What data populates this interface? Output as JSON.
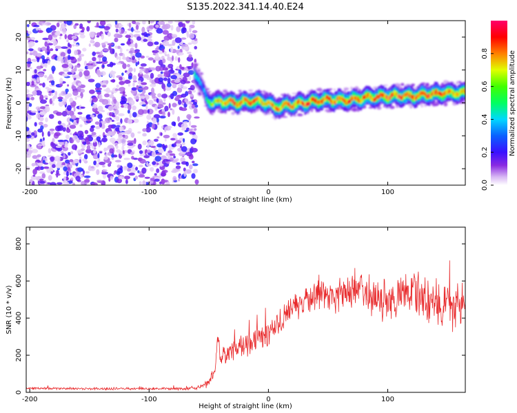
{
  "title": "S135.2022.341.14.40.E24",
  "chart_data": [
    {
      "type": "heatmap",
      "title": "S135.2022.341.14.40.E24",
      "xlabel": "Height of straight line (km)",
      "ylabel": "Frequency (Hz)",
      "xlim": [
        -203,
        165
      ],
      "ylim": [
        -25,
        25
      ],
      "xticks": [
        -200,
        -100,
        0,
        100
      ],
      "yticks": [
        -20,
        -10,
        0,
        10,
        20
      ],
      "colorbar": {
        "label": "Normalized spectral amplitude",
        "range": [
          0,
          1
        ],
        "ticks": [
          0.0,
          0.2,
          0.4,
          0.6,
          0.8
        ],
        "colormap": "rainbow (white-lilac, purple, blue, cyan, green, yellow, orange, red, magenta)"
      },
      "noise_region": {
        "x_range": [
          -203,
          -60
        ],
        "amplitude": "low (0.05-0.25)"
      },
      "ridge": {
        "x": [
          -62,
          -58,
          -55,
          -52,
          -48,
          -40,
          -30,
          -20,
          -10,
          0,
          5,
          10,
          20,
          30,
          40,
          50,
          60,
          70,
          80,
          90,
          100,
          110,
          120,
          130,
          140,
          150,
          165
        ],
        "frequency_hz": [
          9,
          7,
          4,
          1,
          0,
          0.5,
          0,
          0.3,
          0.5,
          0,
          -1.5,
          -1,
          -0.5,
          0,
          0.5,
          1,
          0.8,
          1,
          1.5,
          1.8,
          2,
          2.2,
          2,
          2.5,
          2.8,
          3,
          3
        ],
        "peak_amplitude": [
          0.5,
          0.4,
          0.35,
          0.5,
          0.7,
          0.8,
          0.9,
          0.85,
          0.9,
          0.8,
          0.85,
          0.9,
          0.85,
          0.9,
          0.95,
          0.9,
          0.95,
          0.9,
          0.95,
          0.9,
          0.95,
          0.9,
          0.95,
          0.9,
          0.95,
          0.9,
          0.85
        ]
      }
    },
    {
      "type": "line",
      "xlabel": "Height of straight line (km)",
      "ylabel": "SNR (10 * v/v)",
      "xlim": [
        -203,
        165
      ],
      "ylim": [
        0,
        890
      ],
      "xticks": [
        -200,
        -100,
        0,
        100
      ],
      "yticks": [
        0,
        200,
        400,
        600,
        800
      ],
      "color": "#e8292b",
      "series": [
        {
          "x": [
            -203,
            -150,
            -100,
            -70,
            -60,
            -50,
            -45,
            -42,
            -40,
            -38,
            -30,
            -20,
            -10,
            0,
            10,
            20,
            30,
            40,
            50,
            60,
            70,
            80,
            90,
            100,
            110,
            120,
            130,
            140,
            150,
            160,
            165
          ],
          "values": [
            22,
            20,
            20,
            20,
            25,
            50,
            120,
            300,
            160,
            200,
            220,
            250,
            290,
            320,
            380,
            460,
            500,
            520,
            540,
            520,
            560,
            550,
            510,
            500,
            520,
            560,
            500,
            480,
            470,
            480,
            450
          ],
          "noise_amplitude": [
            8,
            8,
            8,
            10,
            12,
            30,
            60,
            80,
            60,
            60,
            70,
            80,
            80,
            80,
            90,
            90,
            100,
            100,
            100,
            110,
            120,
            120,
            130,
            130,
            140,
            150,
            160,
            160,
            160,
            160,
            160
          ]
        }
      ]
    }
  ]
}
